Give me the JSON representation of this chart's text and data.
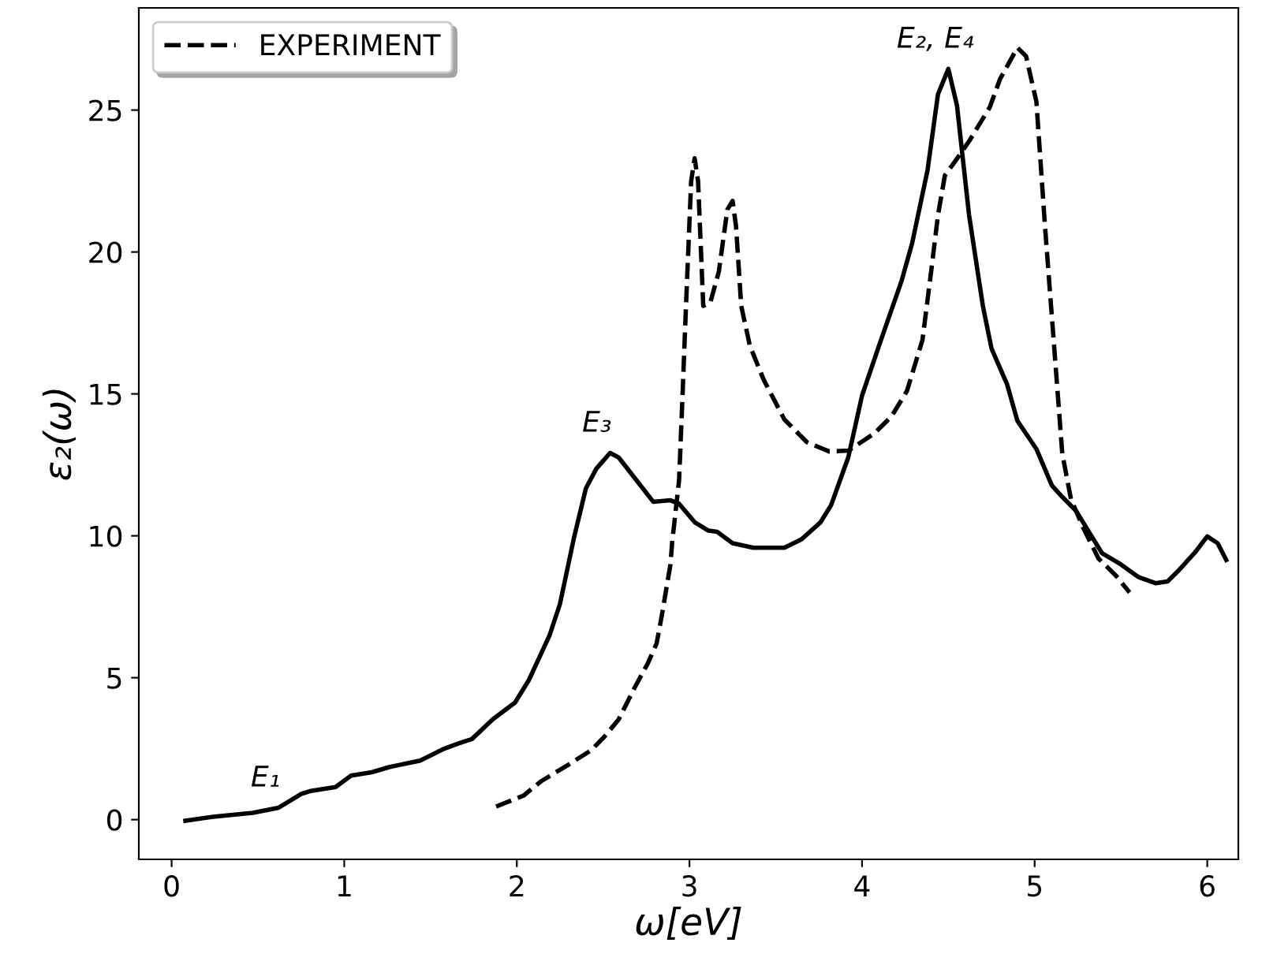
{
  "chart_data": {
    "type": "line",
    "xlabel": "ω[eV]",
    "ylabel": "ε₂(ω)",
    "xlim": [
      -0.19,
      6.18
    ],
    "xticks": [
      0,
      1,
      2,
      3,
      4,
      5,
      6
    ],
    "ylim": [
      -1.4,
      28.6
    ],
    "yticks": [
      0,
      5,
      10,
      15,
      20,
      25
    ],
    "grid": false,
    "legend": "top left",
    "marker": "none",
    "annotations": [
      {
        "text": "E₁",
        "x": 0.62,
        "y": 0.42
      },
      {
        "text": "E₃",
        "x": 2.54,
        "y": 12.92
      },
      {
        "text": "E₂, E₄",
        "x": 4.5,
        "y": 26.45
      }
    ],
    "series": [
      {
        "color": "#000000",
        "line_style": "solid",
        "x": [
          0.08,
          0.24,
          0.47,
          0.62,
          0.75,
          0.8,
          0.95,
          1.04,
          1.16,
          1.26,
          1.44,
          1.58,
          1.66,
          1.74,
          1.86,
          1.99,
          2.07,
          2.19,
          2.25,
          2.33,
          2.4,
          2.46,
          2.54,
          2.59,
          2.68,
          2.79,
          2.89,
          2.94,
          3.03,
          3.11,
          3.16,
          3.25,
          3.37,
          3.55,
          3.65,
          3.76,
          3.82,
          3.92,
          4.0,
          4.1,
          4.23,
          4.29,
          4.38,
          4.44,
          4.5,
          4.55,
          4.62,
          4.7,
          4.75,
          4.84,
          4.9,
          5.01,
          5.1,
          5.16,
          5.24,
          5.31,
          5.39,
          5.5,
          5.6,
          5.7,
          5.77,
          5.83,
          5.93,
          6.0,
          6.06,
          6.11
        ],
        "values": [
          -0.04,
          0.1,
          0.24,
          0.42,
          0.9,
          1.0,
          1.15,
          1.55,
          1.67,
          1.85,
          2.08,
          2.5,
          2.68,
          2.84,
          3.53,
          4.13,
          4.92,
          6.5,
          7.6,
          9.9,
          11.67,
          12.36,
          12.92,
          12.76,
          12.06,
          11.2,
          11.25,
          11.13,
          10.48,
          10.18,
          10.14,
          9.74,
          9.58,
          9.58,
          9.88,
          10.48,
          11.07,
          12.76,
          14.94,
          16.73,
          19.0,
          20.3,
          22.9,
          25.56,
          26.45,
          25.16,
          21.3,
          18.1,
          16.6,
          15.34,
          14.05,
          13.06,
          11.77,
          11.37,
          10.88,
          10.18,
          9.39,
          8.99,
          8.55,
          8.33,
          8.39,
          8.75,
          9.42,
          9.98,
          9.74,
          9.15
        ]
      },
      {
        "name": "EXPERIMENT",
        "color": "#000000",
        "line_style": "dashed",
        "x": [
          1.88,
          2.04,
          2.14,
          2.3,
          2.43,
          2.51,
          2.59,
          2.68,
          2.76,
          2.81,
          2.84,
          2.89,
          2.9,
          2.94,
          2.96,
          2.98,
          3.01,
          3.03,
          3.05,
          3.08,
          3.12,
          3.17,
          3.22,
          3.25,
          3.27,
          3.3,
          3.35,
          3.43,
          3.55,
          3.68,
          3.81,
          3.92,
          4.07,
          4.17,
          4.26,
          4.35,
          4.4,
          4.44,
          4.48,
          4.54,
          4.62,
          4.74,
          4.8,
          4.9,
          4.95,
          5.01,
          5.06,
          5.11,
          5.16,
          5.21,
          5.28,
          5.37,
          5.47,
          5.55
        ],
        "values": [
          0.46,
          0.85,
          1.35,
          1.94,
          2.44,
          2.94,
          3.53,
          4.62,
          5.52,
          6.21,
          7.2,
          8.99,
          9.78,
          11.96,
          14.94,
          18.1,
          22.5,
          23.3,
          22.5,
          18.1,
          18.2,
          19.3,
          21.5,
          21.8,
          20.9,
          18.1,
          16.7,
          15.5,
          14.1,
          13.3,
          12.97,
          13.0,
          13.6,
          14.2,
          15.1,
          16.9,
          19.3,
          21.3,
          22.7,
          23.2,
          23.9,
          25.1,
          26.1,
          27.2,
          26.9,
          25.3,
          20.9,
          16.9,
          12.9,
          11.3,
          10.3,
          9.2,
          8.6,
          8.0
        ]
      }
    ]
  }
}
